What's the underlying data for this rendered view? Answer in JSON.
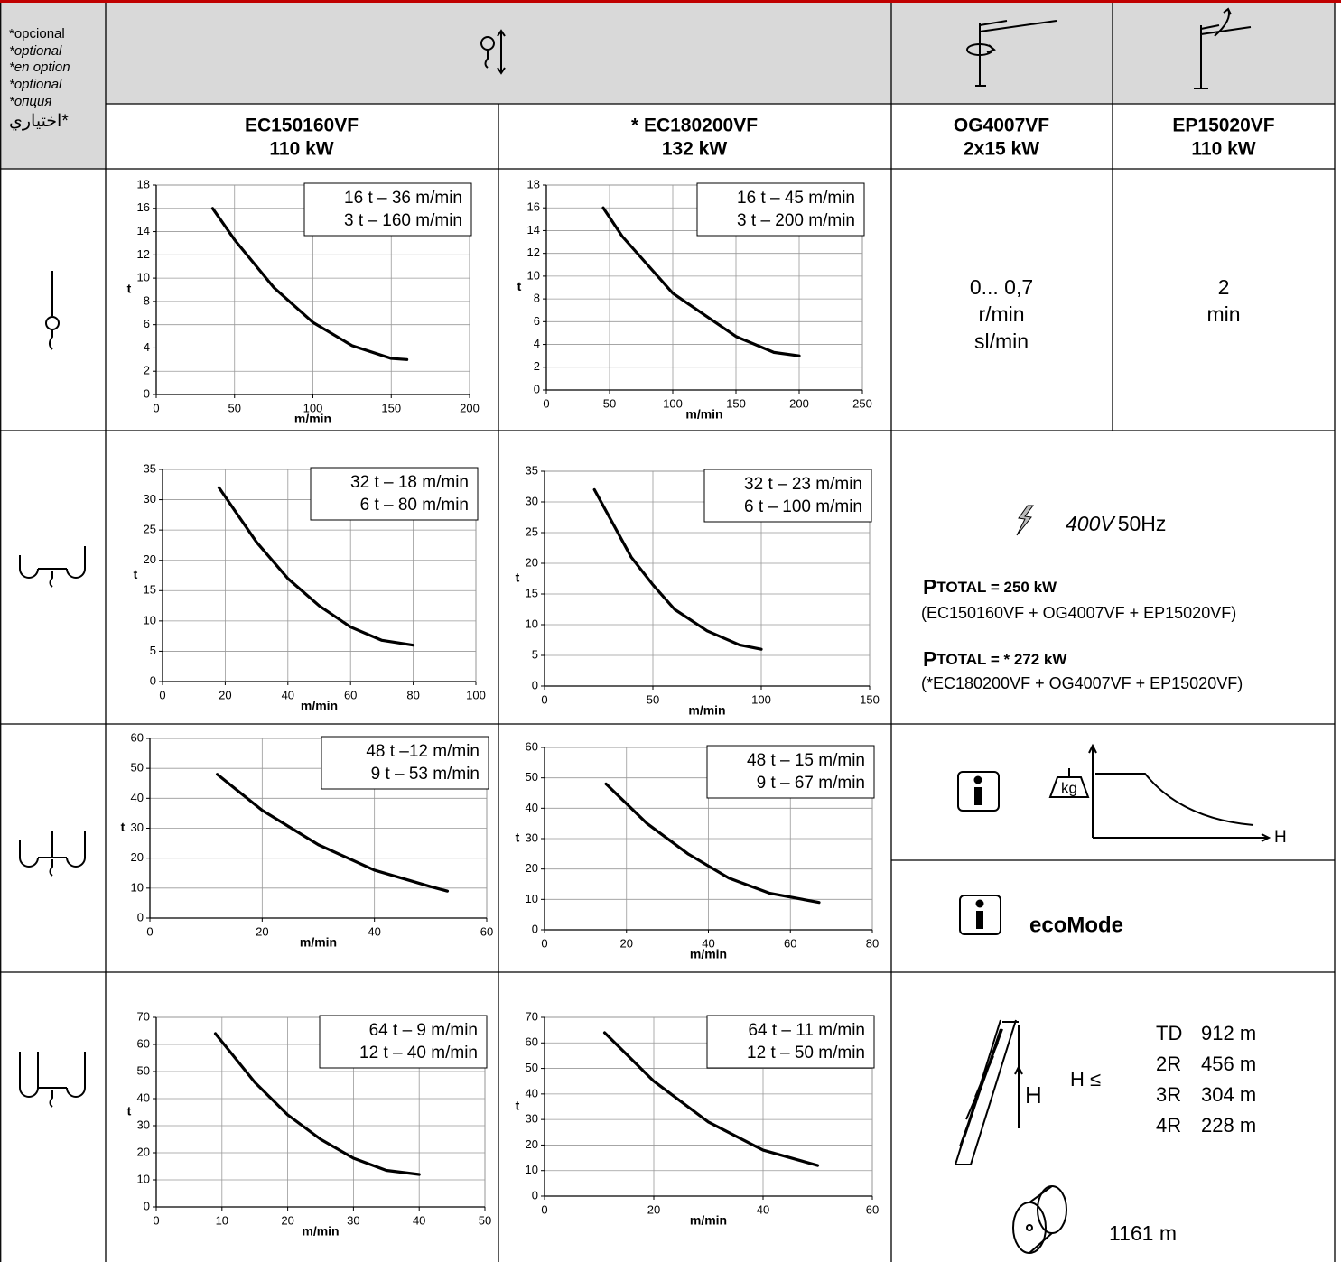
{
  "header": {
    "option_notes": [
      "*opcional",
      "*optional",
      "*en option",
      "*optional",
      "*опция",
      "اختياري*"
    ],
    "models": [
      {
        "name": "EC150160VF",
        "power": "110 kW"
      },
      {
        "name": "* EC180200VF",
        "power": "132 kW"
      },
      {
        "name": "OG4007VF",
        "power": "2x15 kW"
      },
      {
        "name": "EP15020VF",
        "power": "110 kW"
      }
    ]
  },
  "slewing": [
    "0... 0,7",
    "r/min",
    "sl/min"
  ],
  "trolley": [
    "2",
    "min"
  ],
  "power": {
    "voltage": "400V",
    "frequency": "50Hz",
    "total1": {
      "p": "P",
      "rest": "TOTAL = 250 kW"
    },
    "combo1": "(EC150160VF + OG4007VF + EP15020VF)",
    "total2": {
      "p": "P",
      "rest": "TOTAL = * 272 kW"
    },
    "combo2": "(*EC180200VF + OG4007VF + EP15020VF)"
  },
  "info": {
    "kg": "kg",
    "h": "H",
    "ecomode": "ecoMode"
  },
  "height": {
    "h": "H",
    "h_le": "H ≤",
    "rows": [
      [
        "TD",
        "912 m"
      ],
      [
        "2R",
        "456 m"
      ],
      [
        "3R",
        "304 m"
      ],
      [
        "4R",
        "228 m"
      ]
    ],
    "drum": "1161 m"
  },
  "chart_data": [
    {
      "type": "line",
      "x": [
        36,
        50,
        75,
        100,
        125,
        150,
        160
      ],
      "values": [
        16,
        13.3,
        9.2,
        6.2,
        4.2,
        3.1,
        3
      ],
      "color": "#000000",
      "xlim": [
        0,
        200
      ],
      "xticks": [
        0,
        50,
        100,
        150,
        200
      ],
      "ylim": [
        0,
        18
      ],
      "yticks": [
        0,
        2,
        4,
        6,
        8,
        10,
        12,
        14,
        16,
        18
      ],
      "x_label": "m/min",
      "y_label": "t",
      "annotations": [
        "16 t –  36 m/min",
        "3 t – 160 m/min"
      ],
      "grid": true
    },
    {
      "type": "line",
      "x": [
        45,
        60,
        100,
        150,
        180,
        200
      ],
      "values": [
        16,
        13.5,
        8.5,
        4.7,
        3.3,
        3
      ],
      "color": "#000000",
      "xlim": [
        0,
        250
      ],
      "xticks": [
        0,
        50,
        100,
        150,
        200,
        250
      ],
      "ylim": [
        0,
        18
      ],
      "yticks": [
        0,
        2,
        4,
        6,
        8,
        10,
        12,
        14,
        16,
        18
      ],
      "x_label": "m/min",
      "y_label": "t",
      "annotations": [
        "16 t –  45 m/min",
        "3 t – 200 m/min"
      ],
      "grid": true
    },
    {
      "type": "line",
      "x": [
        18,
        30,
        40,
        50,
        60,
        70,
        80
      ],
      "values": [
        32,
        23,
        17,
        12.5,
        9,
        6.8,
        6
      ],
      "color": "#000000",
      "xlim": [
        0,
        100
      ],
      "xticks": [
        0,
        20,
        40,
        60,
        80,
        100
      ],
      "ylim": [
        0,
        35
      ],
      "yticks": [
        0,
        5,
        10,
        15,
        20,
        25,
        30,
        35
      ],
      "x_label": "m/min",
      "y_label": "t",
      "annotations": [
        "32 t – 18 m/min",
        "6 t – 80 m/min"
      ],
      "grid": true
    },
    {
      "type": "line",
      "x": [
        23,
        40,
        50,
        60,
        75,
        90,
        100
      ],
      "values": [
        32,
        21,
        16.5,
        12.5,
        9,
        6.7,
        6
      ],
      "color": "#000000",
      "xlim": [
        0,
        150
      ],
      "xticks": [
        0,
        50,
        100,
        150
      ],
      "ylim": [
        0,
        35
      ],
      "yticks": [
        0,
        5,
        10,
        15,
        20,
        25,
        30,
        35
      ],
      "x_label": "m/min",
      "y_label": "t",
      "annotations": [
        "32 t – 23 m/min",
        "6 t – 100 m/min"
      ],
      "grid": true
    },
    {
      "type": "line",
      "x": [
        12,
        20,
        30,
        40,
        50,
        53
      ],
      "values": [
        48,
        36,
        24.5,
        16,
        10.5,
        9
      ],
      "color": "#000000",
      "xlim": [
        0,
        60
      ],
      "xticks": [
        0,
        20,
        40,
        60
      ],
      "ylim": [
        0,
        60
      ],
      "yticks": [
        0,
        10,
        20,
        30,
        40,
        50,
        60
      ],
      "x_label": "m/min",
      "y_label": "t",
      "annotations": [
        "48 t –12 m/min",
        "9 t – 53 m/min"
      ],
      "grid": true
    },
    {
      "type": "line",
      "x": [
        15,
        25,
        35,
        45,
        55,
        67
      ],
      "values": [
        48,
        35,
        25,
        17,
        12,
        9
      ],
      "color": "#000000",
      "xlim": [
        0,
        80
      ],
      "xticks": [
        0,
        20,
        40,
        60,
        80
      ],
      "ylim": [
        0,
        60
      ],
      "yticks": [
        0,
        10,
        20,
        30,
        40,
        50,
        60
      ],
      "x_label": "m/min",
      "y_label": "t",
      "annotations": [
        "48 t – 15 m/min",
        "9 t – 67 m/min"
      ],
      "grid": true
    },
    {
      "type": "line",
      "x": [
        9,
        15,
        20,
        25,
        30,
        35,
        40
      ],
      "values": [
        64,
        46,
        34,
        25,
        18,
        13.5,
        12
      ],
      "color": "#000000",
      "xlim": [
        0,
        50
      ],
      "xticks": [
        0,
        10,
        20,
        30,
        40,
        50
      ],
      "ylim": [
        0,
        70
      ],
      "yticks": [
        0,
        10,
        20,
        30,
        40,
        50,
        60,
        70
      ],
      "x_label": "m/min",
      "y_label": "t",
      "annotations": [
        "64 t –   9 m/min",
        "12 t – 40 m/min"
      ],
      "grid": true
    },
    {
      "type": "line",
      "x": [
        11,
        20,
        30,
        40,
        50
      ],
      "values": [
        64,
        45,
        29,
        18,
        12
      ],
      "color": "#000000",
      "xlim": [
        0,
        60
      ],
      "xticks": [
        0,
        20,
        40,
        60
      ],
      "ylim": [
        0,
        70
      ],
      "yticks": [
        0,
        10,
        20,
        30,
        40,
        50,
        60,
        70
      ],
      "x_label": "m/min",
      "y_label": "t",
      "annotations": [
        "64 t – 11 m/min",
        "12 t – 50 m/min"
      ],
      "grid": true
    }
  ]
}
